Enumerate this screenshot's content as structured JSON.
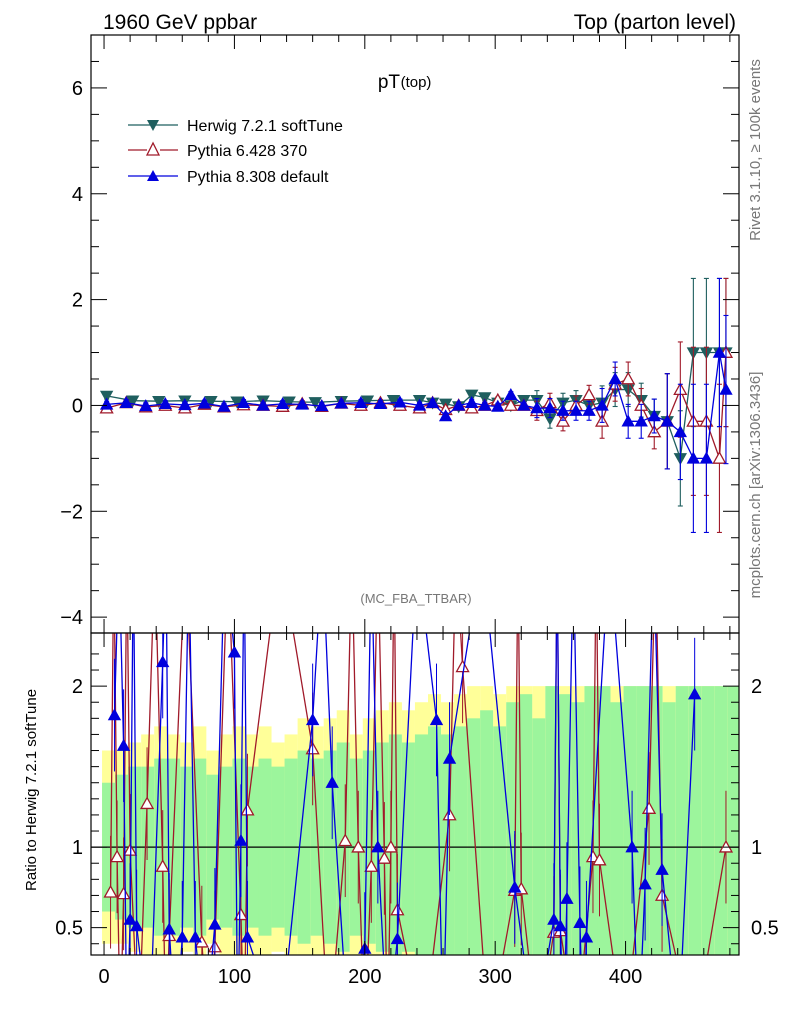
{
  "header": {
    "left": "1960 GeV ppbar",
    "right": "Top (parton level)"
  },
  "side_labels": {
    "rivet": "Rivet 3.1.10, ≥ 100k events",
    "mcplots": "mcplots.cern.ch [arXiv:1306.3436]"
  },
  "colors": {
    "herwig": "#1f5f5f",
    "pythia6": "#a01a2a",
    "pythia8": "#0000dd",
    "band_inner": "#9cf59c",
    "band_outer": "#ffff99"
  },
  "chart_data": [
    {
      "type": "line",
      "title": "pT",
      "title_sub": "(top)",
      "analysis": "(MC_FBA_TTBAR)",
      "xlim": [
        -10,
        487
      ],
      "ylim": [
        -4.3,
        7.0
      ],
      "yticks": [
        "−4",
        "−2",
        "0",
        "2",
        "4",
        "6"
      ],
      "legend_position": "top-left",
      "series": [
        {
          "name": "Herwig 7.2.1 softTune",
          "key": "herwig",
          "marker": "triangle-down-filled",
          "x": [
            2,
            22,
            42,
            62,
            82,
            102,
            122,
            142,
            162,
            182,
            202,
            222,
            242,
            252,
            262,
            272,
            282,
            292,
            302,
            312,
            322,
            332,
            342,
            352,
            362,
            372,
            382,
            392,
            402,
            412,
            422,
            432,
            442,
            452,
            462,
            472,
            477
          ],
          "y": [
            0.18,
            0.09,
            0.08,
            0.09,
            0.08,
            0.07,
            0.09,
            0.07,
            0.06,
            0.08,
            0.09,
            0.1,
            0.1,
            0.05,
            0.03,
            -0.02,
            0.2,
            0.15,
            0.05,
            0.0,
            0.1,
            0.1,
            -0.25,
            0.05,
            0.1,
            0.0,
            0.05,
            0.3,
            0.3,
            0.1,
            -0.2,
            -0.3,
            -1.0,
            1.0,
            1.0,
            1.0,
            1.0
          ]
        },
        {
          "name": "Pythia 6.428 370",
          "key": "pythia6",
          "marker": "triangle-up-open",
          "x": [
            2,
            17,
            32,
            47,
            62,
            77,
            92,
            107,
            122,
            137,
            152,
            167,
            182,
            197,
            212,
            227,
            242,
            252,
            262,
            272,
            282,
            292,
            302,
            312,
            322,
            332,
            342,
            352,
            362,
            372,
            382,
            392,
            402,
            412,
            422,
            432,
            442,
            452,
            462,
            472,
            477
          ],
          "y": [
            -0.05,
            0.05,
            -0.03,
            0.0,
            -0.05,
            0.02,
            -0.03,
            0.01,
            0.0,
            -0.02,
            0.03,
            -0.02,
            0.04,
            0.0,
            0.05,
            0.0,
            -0.05,
            0.05,
            -0.08,
            0.0,
            -0.05,
            0.0,
            0.1,
            0.0,
            0.0,
            -0.1,
            0.05,
            -0.3,
            0.0,
            0.2,
            -0.3,
            0.4,
            0.5,
            0.0,
            -0.5,
            -0.3,
            0.3,
            -0.3,
            -0.3,
            -1.0,
            1.0
          ]
        },
        {
          "name": "Pythia 8.308 default",
          "key": "pythia8",
          "marker": "triangle-up-filled",
          "x": [
            2,
            17,
            32,
            47,
            62,
            77,
            92,
            107,
            122,
            137,
            152,
            167,
            182,
            197,
            212,
            227,
            242,
            252,
            262,
            272,
            282,
            292,
            302,
            312,
            322,
            332,
            342,
            352,
            362,
            372,
            382,
            392,
            402,
            412,
            422,
            432,
            442,
            452,
            462,
            472,
            477
          ],
          "y": [
            0.02,
            0.05,
            -0.01,
            0.03,
            0.01,
            0.04,
            -0.02,
            0.05,
            0.0,
            0.03,
            0.02,
            -0.01,
            0.04,
            0.05,
            0.03,
            0.06,
            0.0,
            0.05,
            -0.2,
            0.0,
            0.05,
            0.0,
            -0.02,
            0.2,
            0.0,
            -0.05,
            -0.05,
            -0.1,
            -0.1,
            -0.1,
            0.0,
            0.5,
            -0.3,
            -0.3,
            -0.2,
            -0.3,
            -0.5,
            -1.0,
            -1.0,
            1.0,
            0.3
          ]
        }
      ]
    },
    {
      "type": "line",
      "ylabel": "Ratio to Herwig 7.2.1 softTune",
      "xlabel": "",
      "xlim": [
        -10,
        487
      ],
      "ylim": [
        0.33,
        2.33
      ],
      "xticks": [
        "0",
        "100",
        "200",
        "300",
        "400"
      ],
      "yticks_left": [
        "0.5",
        "1",
        "2"
      ],
      "yticks_right": [
        "0.5",
        "1",
        "2"
      ],
      "reference": 1.0,
      "band_x": [
        0,
        10,
        20,
        30,
        40,
        50,
        60,
        70,
        80,
        90,
        100,
        110,
        120,
        130,
        140,
        150,
        160,
        170,
        180,
        190,
        200,
        210,
        220,
        230,
        240,
        250,
        260,
        270,
        280,
        290,
        300,
        310,
        320,
        330,
        340,
        350,
        360,
        370,
        380,
        390,
        400,
        410,
        420,
        430,
        440,
        450,
        460,
        470,
        480
      ],
      "band_inner": [
        0.4,
        0.45,
        0.5,
        0.5,
        0.55,
        0.55,
        0.5,
        0.55,
        0.45,
        0.5,
        0.55,
        0.5,
        0.55,
        0.5,
        0.55,
        0.6,
        0.55,
        0.6,
        0.65,
        0.55,
        0.6,
        0.65,
        0.7,
        0.65,
        0.7,
        0.75,
        0.7,
        0.75,
        0.8,
        0.85,
        0.75,
        0.9,
        0.95,
        0.8,
        1.0,
        0.95,
        0.9,
        1.0,
        1.0,
        0.9,
        1.0,
        1.0,
        1.0,
        0.9,
        1.0,
        1.0,
        1.0,
        1.0,
        1.0
      ],
      "band_outer": [
        0.6,
        0.6,
        0.65,
        0.7,
        0.75,
        0.7,
        0.65,
        0.75,
        0.6,
        0.7,
        0.75,
        0.7,
        0.75,
        0.65,
        0.7,
        0.8,
        0.75,
        0.8,
        0.85,
        0.7,
        0.8,
        0.85,
        0.9,
        0.85,
        0.9,
        0.95,
        0.9,
        0.95,
        1.0,
        1.0,
        0.95,
        1.0,
        1.0,
        1.0,
        1.0,
        1.0,
        1.0,
        1.0,
        1.0,
        1.0,
        1.0,
        1.0,
        1.0,
        1.0,
        1.0,
        1.0,
        1.0,
        1.0,
        1.0
      ],
      "series": [
        {
          "name": "Pythia 6.428 370",
          "key": "pythia6",
          "marker": "triangle-up-open",
          "x": [
            5,
            10,
            15,
            20,
            33,
            45,
            50,
            75,
            85,
            105,
            110,
            160,
            185,
            195,
            205,
            215,
            220,
            225,
            265,
            275,
            315,
            320,
            345,
            350,
            375,
            380,
            418,
            428,
            477
          ],
          "y": [
            0.72,
            0.94,
            0.71,
            0.98,
            1.27,
            0.88,
            0.45,
            0.41,
            0.38,
            0.58,
            1.23,
            1.61,
            1.04,
            1.0,
            0.88,
            0.93,
            1.0,
            0.61,
            1.2,
            2.12,
            0.73,
            0.74,
            0.47,
            0.48,
            0.94,
            0.92,
            1.24,
            0.7,
            1.0
          ]
        },
        {
          "name": "Pythia 8.308 default",
          "key": "pythia8",
          "marker": "triangle-up-filled",
          "x": [
            8,
            15,
            20,
            25,
            45,
            50,
            60,
            70,
            85,
            100,
            105,
            110,
            160,
            175,
            200,
            210,
            225,
            255,
            265,
            315,
            345,
            350,
            355,
            365,
            370,
            405,
            415,
            428,
            453
          ],
          "y": [
            1.82,
            1.63,
            0.55,
            0.51,
            2.15,
            0.49,
            0.44,
            0.44,
            0.52,
            2.21,
            1.04,
            0.44,
            1.79,
            1.4,
            0.37,
            1.0,
            0.43,
            1.79,
            1.55,
            0.75,
            0.55,
            0.51,
            0.68,
            0.53,
            0.44,
            1.0,
            0.77,
            0.86,
            1.95
          ]
        }
      ]
    }
  ]
}
